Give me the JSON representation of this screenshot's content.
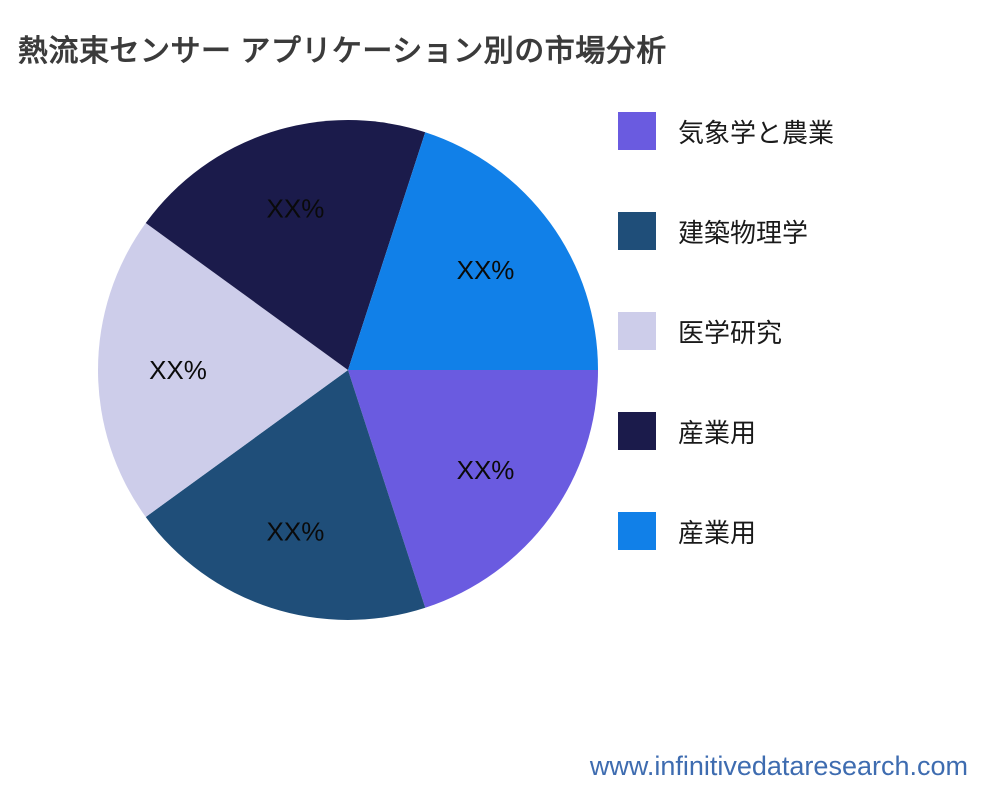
{
  "title": "熱流束センサー アプリケーション別の市場分析",
  "watermark": "www.infinitivedataresearch.com",
  "colors": {
    "background": "#ffffff",
    "title_text": "#3b3b3b",
    "slice_label_text": "#0a0a0a",
    "watermark_text": "#3e6cb0"
  },
  "chart_data": {
    "type": "pie",
    "title": "熱流束センサー アプリケーション別の市場分析",
    "legend_position": "right",
    "start_angle_deg": 0,
    "direction": "clockwise",
    "label_radius_fraction": 0.68,
    "slices": [
      {
        "label": "気象学と農業",
        "value": 20,
        "display_value": "XX%",
        "color": "#6a5be0"
      },
      {
        "label": "建築物理学",
        "value": 20,
        "display_value": "XX%",
        "color": "#1f4e79"
      },
      {
        "label": "医学研究",
        "value": 20,
        "display_value": "XX%",
        "color": "#cdcdea"
      },
      {
        "label": "産業用",
        "value": 20,
        "display_value": "XX%",
        "color": "#1b1b4b"
      },
      {
        "label": "産業用",
        "value": 20,
        "display_value": "XX%",
        "color": "#1180e8"
      }
    ]
  }
}
